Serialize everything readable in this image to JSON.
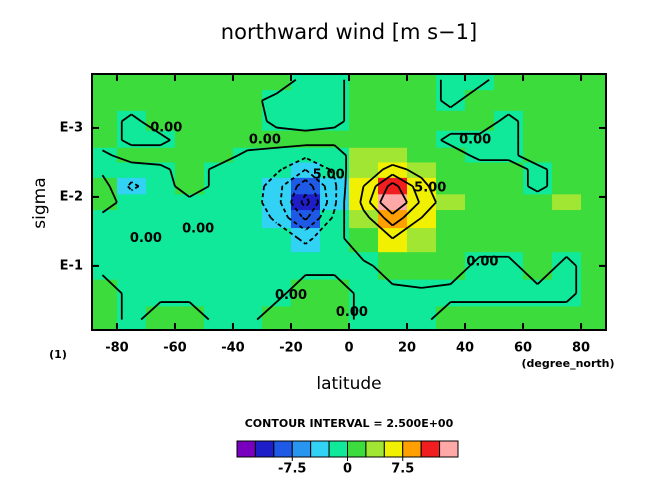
{
  "chart_data": {
    "type": "contour",
    "title": "northward wind [m s−1]",
    "x_label": "latitude",
    "y_label": "sigma",
    "x_units": "(degree_north)",
    "panel_label": "(1)",
    "contour_note": "CONTOUR INTERVAL = 2.500E+00",
    "xlim": [
      -88.6,
      88.6
    ],
    "xticks": [
      -80,
      -60,
      -40,
      -20,
      0,
      20,
      40,
      60,
      80
    ],
    "ylim": [
      0.000165,
      0.85
    ],
    "y_scale": "log",
    "y_inverted": true,
    "yticks": [
      {
        "value": 0.001,
        "label": "E-3"
      },
      {
        "value": 0.01,
        "label": "E-2"
      },
      {
        "value": 0.1,
        "label": "E-1"
      }
    ],
    "x": [
      -85,
      -75,
      -65,
      -55,
      -45,
      -35,
      -25,
      -15,
      -5,
      5,
      15,
      25,
      35,
      45,
      55,
      65,
      75,
      85
    ],
    "y": [
      0.0002,
      0.0004,
      0.0008,
      0.0015,
      0.0025,
      0.004,
      0.007,
      0.012,
      0.02,
      0.04,
      0.1,
      0.25,
      0.6
    ],
    "z": [
      [
        1,
        1,
        1,
        0.5,
        1,
        1,
        1,
        -0.5,
        -0.5,
        1,
        1,
        1,
        -0.5,
        -0.5,
        1,
        1,
        1,
        1
      ],
      [
        1,
        1,
        1,
        1,
        1,
        0.5,
        -0.5,
        -1,
        -0.5,
        1,
        1,
        1,
        -0.5,
        1,
        1,
        1,
        1,
        1
      ],
      [
        1,
        -0.5,
        1,
        1,
        1,
        1,
        -0.5,
        -1,
        -0.5,
        1,
        1,
        1,
        1,
        1,
        -0.5,
        1,
        1,
        1
      ],
      [
        1,
        -0.5,
        -0.5,
        1,
        1,
        1,
        1,
        1,
        1,
        1,
        1,
        1,
        -0.5,
        -0.5,
        -0.5,
        1,
        1,
        1
      ],
      [
        -0.5,
        1,
        1,
        1,
        1,
        -0.5,
        -1,
        -2,
        -2,
        3,
        3,
        2,
        1,
        -0.5,
        -0.5,
        1,
        1,
        1
      ],
      [
        -0.5,
        -1,
        -0.5,
        1,
        -0.5,
        -0.5,
        -2,
        -5,
        -2,
        3,
        6,
        4,
        1,
        1,
        1,
        -0.5,
        1,
        1
      ],
      [
        1,
        -3,
        -1,
        1,
        -0.5,
        -0.5,
        -4,
        -9,
        -3,
        5,
        11,
        6,
        2,
        1,
        1,
        -0.5,
        1,
        1
      ],
      [
        1,
        -1,
        -0.5,
        -0.5,
        -0.5,
        -1,
        -4,
        -11,
        -3,
        6,
        13,
        7,
        3,
        1,
        1,
        1,
        3,
        1
      ],
      [
        -0.5,
        -0.5,
        -0.5,
        -0.5,
        -0.5,
        -0.5,
        -3,
        -8,
        -2,
        4,
        9,
        5,
        2,
        1,
        1,
        1,
        1,
        1
      ],
      [
        -0.5,
        -0.5,
        -0.5,
        -1,
        -0.5,
        -0.5,
        -1,
        -3,
        -1,
        2,
        5,
        3,
        1,
        1,
        1,
        1,
        1,
        1
      ],
      [
        -0.5,
        -0.5,
        -0.5,
        -0.5,
        -0.5,
        -0.5,
        -0.5,
        -0.5,
        -0.5,
        -0.5,
        1,
        2,
        1,
        -0.5,
        -0.5,
        1,
        -0.5,
        1
      ],
      [
        1,
        -0.5,
        -0.5,
        -0.5,
        -0.5,
        -0.5,
        -0.5,
        1,
        1,
        -0.5,
        -0.5,
        -0.5,
        -0.5,
        -0.5,
        -0.5,
        -0.5,
        -0.5,
        1
      ],
      [
        1,
        -0.5,
        1,
        1,
        -0.5,
        -0.5,
        1,
        1,
        1,
        -0.5,
        -0.5,
        -0.5,
        1,
        1,
        1,
        1,
        1,
        1
      ]
    ],
    "contour_levels": [
      -10,
      -7.5,
      -5,
      -2.5,
      0,
      5,
      7.5,
      10
    ],
    "colorbar": {
      "bounds": [
        -15,
        -12.5,
        -10,
        -7.5,
        -5,
        -2.5,
        0,
        2.5,
        5,
        7.5,
        10,
        12.5,
        15
      ],
      "colors": [
        "#7a00c0",
        "#1e1ec8",
        "#1e5ae6",
        "#2896f0",
        "#32d2f5",
        "#10e89a",
        "#3cdc3c",
        "#a0e632",
        "#f0f000",
        "#ffa000",
        "#f01e1e",
        "#ffa8a8"
      ],
      "ticks": [
        -7.5,
        0,
        7.5
      ]
    },
    "annotations": [
      {
        "text": "0.00",
        "x": -63,
        "y": 0.001
      },
      {
        "text": "0.00",
        "x": -29,
        "y": 0.0015
      },
      {
        "text": "0.00",
        "x": 43.5,
        "y": 0.0015
      },
      {
        "text": "0.00",
        "x": -52,
        "y": 0.029
      },
      {
        "text": "0.00",
        "x": -70,
        "y": 0.04
      },
      {
        "text": "0.00",
        "x": -20,
        "y": 0.27
      },
      {
        "text": "0.00",
        "x": 1,
        "y": 0.47
      },
      {
        "text": "0.00",
        "x": 46,
        "y": 0.088
      },
      {
        "text": "5.00",
        "x": -7,
        "y": 0.0048
      },
      {
        "text": "5.00",
        "x": 28,
        "y": 0.0074
      }
    ]
  }
}
